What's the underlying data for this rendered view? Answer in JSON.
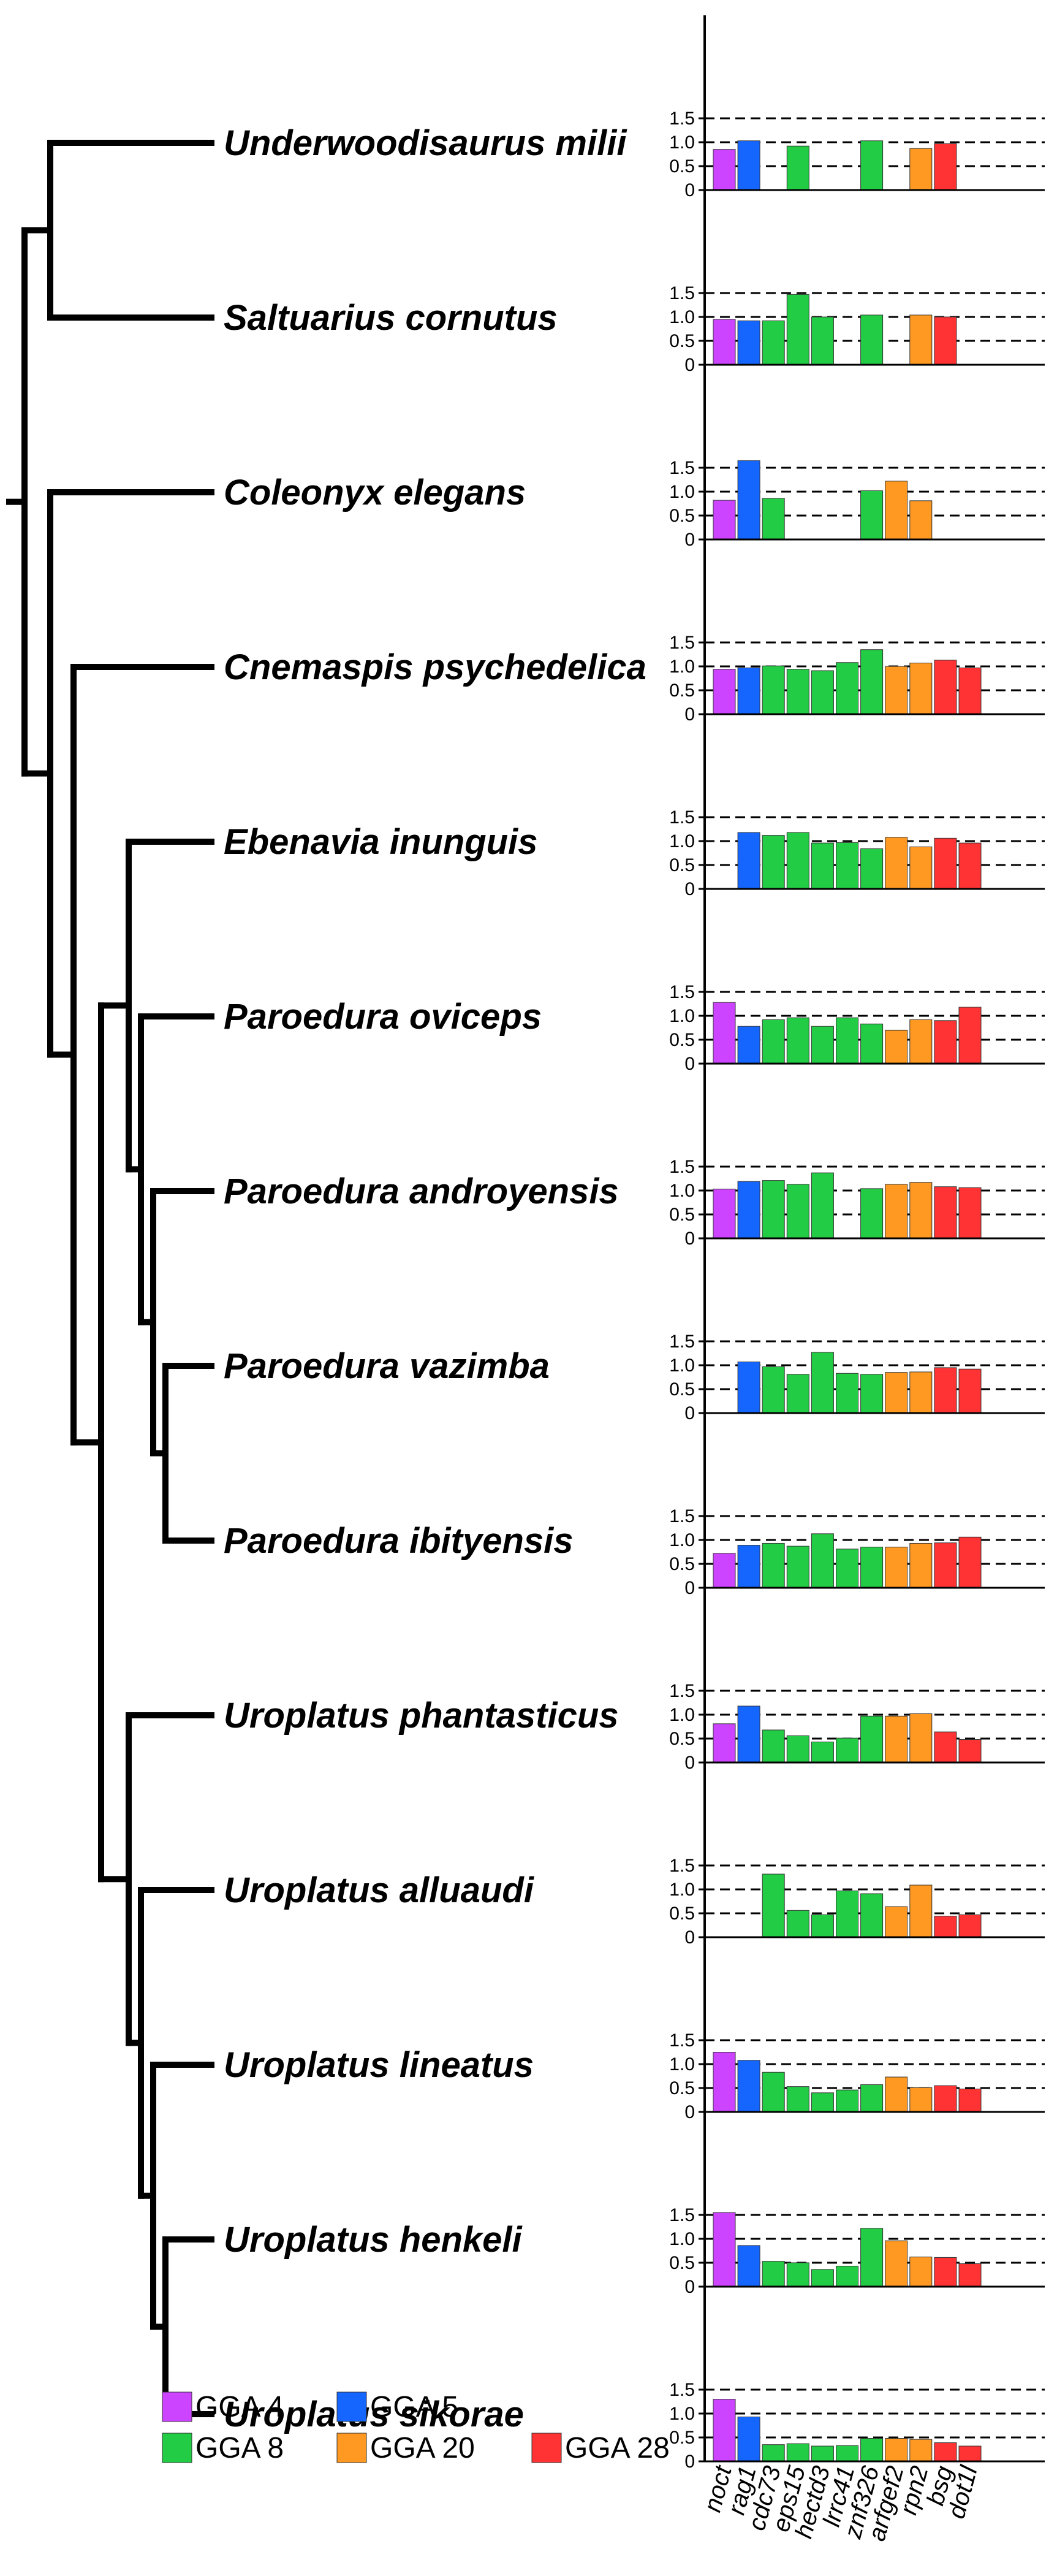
{
  "figure": {
    "legend": [
      {
        "label": "GGA 4",
        "color": "#cc44ff"
      },
      {
        "label": "GGA 5",
        "color": "#1566ff"
      },
      {
        "label": "GGA 8",
        "color": "#22cc44"
      },
      {
        "label": "GGA 20",
        "color": "#ff9922"
      },
      {
        "label": "GGA 28",
        "color": "#ff3333"
      }
    ]
  },
  "chart_data": {
    "type": "bar",
    "title": "",
    "xlabel": "",
    "ylabel": "",
    "categories": [
      "noct",
      "rag1",
      "cdc73",
      "eps15",
      "hectd3",
      "lrrc41",
      "znf326",
      "arfgef2",
      "rpn2",
      "bsg",
      "dot1l"
    ],
    "category_groups": [
      "GGA 4",
      "GGA 5",
      "GGA 8",
      "GGA 8",
      "GGA 8",
      "GGA 8",
      "GGA 8",
      "GGA 20",
      "GGA 20",
      "GGA 28",
      "GGA 28"
    ],
    "ylim": [
      0,
      1.5
    ],
    "yticks": [
      "0",
      "0.5",
      "1.0",
      "1.5"
    ],
    "gridlines": [
      0.5,
      1.0,
      1.5
    ],
    "panels": [
      {
        "species": "Underwoodisaurus milii",
        "values": [
          0.85,
          1.03,
          null,
          0.92,
          null,
          null,
          1.03,
          null,
          0.87,
          0.97,
          null
        ]
      },
      {
        "species": "Saltuarius cornutus",
        "values": [
          0.95,
          0.92,
          0.92,
          1.47,
          1.0,
          null,
          1.04,
          null,
          1.04,
          1.0,
          null
        ]
      },
      {
        "species": "Coleonyx elegans",
        "values": [
          0.82,
          1.65,
          0.86,
          null,
          null,
          null,
          1.02,
          1.22,
          0.81,
          null,
          null
        ]
      },
      {
        "species": "Cnemaspis psychedelica",
        "values": [
          0.94,
          0.97,
          1.01,
          0.94,
          0.91,
          1.08,
          1.35,
          1.0,
          1.07,
          1.13,
          0.97
        ]
      },
      {
        "species": "Ebenavia inunguis",
        "values": [
          null,
          1.18,
          1.12,
          1.18,
          0.96,
          0.97,
          0.84,
          1.08,
          0.88,
          1.06,
          0.96
        ]
      },
      {
        "species": "Paroedura oviceps",
        "values": [
          1.28,
          0.78,
          0.92,
          0.96,
          0.78,
          0.96,
          0.83,
          0.7,
          0.92,
          0.9,
          1.18
        ]
      },
      {
        "species": "Paroedura androyensis",
        "values": [
          1.03,
          1.19,
          1.21,
          1.13,
          1.37,
          null,
          1.04,
          1.13,
          1.17,
          1.08,
          1.06
        ]
      },
      {
        "species": "Paroedura vazimba",
        "values": [
          null,
          1.07,
          0.97,
          0.81,
          1.27,
          0.83,
          0.81,
          0.85,
          0.86,
          0.95,
          0.92
        ]
      },
      {
        "species": "Paroedura ibityensis",
        "values": [
          0.72,
          0.89,
          0.93,
          0.87,
          1.13,
          0.81,
          0.85,
          0.85,
          0.93,
          0.94,
          1.06
        ]
      },
      {
        "species": "Uroplatus phantasticus",
        "values": [
          0.81,
          1.18,
          0.68,
          0.56,
          0.43,
          0.51,
          0.97,
          0.97,
          1.02,
          0.64,
          0.48
        ]
      },
      {
        "species": "Uroplatus alluaudi",
        "values": [
          null,
          null,
          1.32,
          0.56,
          0.47,
          0.97,
          0.91,
          0.64,
          1.09,
          0.44,
          0.47
        ]
      },
      {
        "species": "Uroplatus lineatus",
        "values": [
          1.25,
          1.08,
          0.83,
          0.53,
          0.4,
          0.46,
          0.57,
          0.73,
          0.51,
          0.55,
          0.48
        ]
      },
      {
        "species": "Uroplatus henkeli",
        "values": [
          1.55,
          0.86,
          0.53,
          0.5,
          0.36,
          0.43,
          1.22,
          0.96,
          0.62,
          0.61,
          0.48
        ]
      },
      {
        "species": "Uroplatus sikorae",
        "values": [
          1.3,
          0.93,
          0.35,
          0.37,
          0.32,
          0.33,
          0.48,
          0.48,
          0.46,
          0.39,
          0.32
        ]
      }
    ]
  }
}
